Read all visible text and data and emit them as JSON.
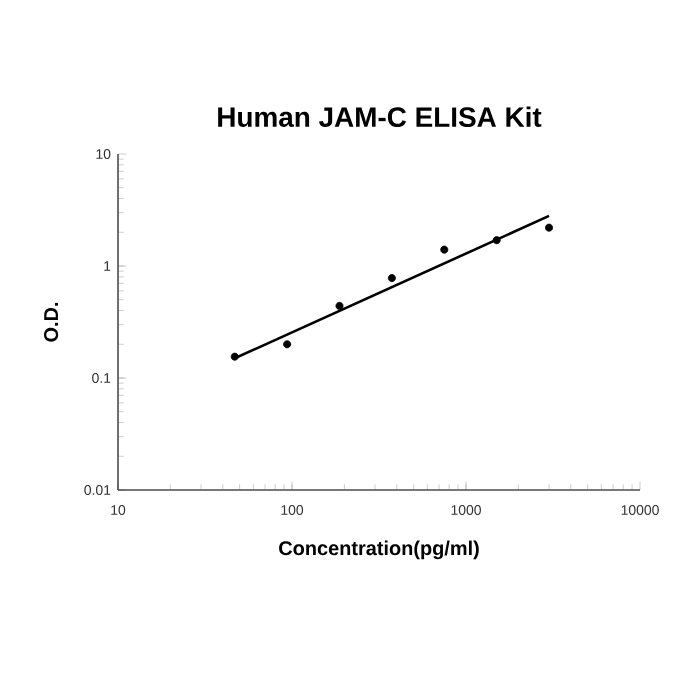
{
  "chart_data": {
    "type": "scatter",
    "title": "Human JAM-C ELISA Kit",
    "xlabel": "Concentration(pg/ml)",
    "ylabel": "O.D.",
    "log": "xy",
    "xlim": [
      10,
      10000
    ],
    "ylim": [
      0.01,
      10
    ],
    "xticks": [
      10,
      100,
      1000,
      10000
    ],
    "yticks": [
      0.01,
      0.1,
      1,
      10
    ],
    "series": [
      {
        "marker": "circle",
        "color": "#000000",
        "x": [
          46.875,
          93.75,
          187.5,
          375,
          750,
          1500,
          3000
        ],
        "values": [
          0.155,
          0.2,
          0.44,
          0.78,
          1.4,
          1.7,
          2.2
        ]
      },
      {
        "type": "line",
        "marker": "none",
        "color": "#000000",
        "x": [
          46.875,
          3000
        ],
        "values": [
          0.15,
          2.8
        ]
      }
    ]
  }
}
